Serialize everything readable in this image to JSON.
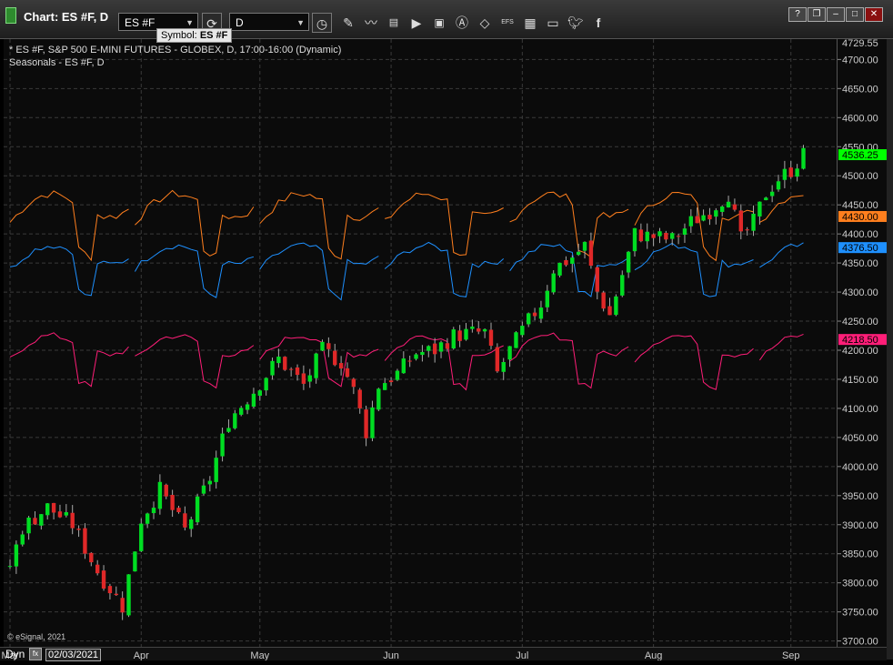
{
  "window": {
    "title": "Chart: ES #F, D",
    "symbol_value": "ES #F",
    "interval_value": "D",
    "tooltip_label": "Symbol:",
    "tooltip_value": "ES #F",
    "buttons": {
      "help": "?",
      "restore": "❐",
      "minimize": "–",
      "maximize": "□",
      "close": "✕"
    }
  },
  "toolbar_icons": [
    "clock-icon",
    "pencil-icon",
    "line-tool-icon",
    "quote-icon",
    "play-icon",
    "text-tool-icon",
    "alert-icon",
    "eraser-icon",
    "efs-icon",
    "layout-icon",
    "chat-icon",
    "twitter-icon",
    "facebook-icon"
  ],
  "toolbar_efs_label": "EFS",
  "chart_info": {
    "line1": "* ES #F, S&P 500 E-MINI FUTURES - GLOBEX, D, 17:00-16:00 (Dynamic)",
    "line2": "Seasonals - ES #F, D"
  },
  "copyright": "© eSignal, 2021",
  "bottom": {
    "mode": "Dyn",
    "fn_label": "fx",
    "date": "02/03/2021"
  },
  "colors": {
    "up": "#00dd22",
    "down": "#e02828",
    "orange": "#ff7f1e",
    "blue": "#1e90ff",
    "pink": "#ff1e78",
    "grid": "#3a3a3a"
  },
  "chart_data": {
    "type": "candlestick",
    "ylim": [
      3690,
      4735
    ],
    "y_ticks": [
      3700,
      3750,
      3800,
      3850,
      3900,
      3950,
      4000,
      4050,
      4100,
      4150,
      4200,
      4250,
      4300,
      4350,
      4400,
      4450,
      4500,
      4550,
      4600,
      4650,
      4700
    ],
    "x_labels": [
      "Mar",
      "Apr",
      "May",
      "Jun",
      "Jul",
      "Aug",
      "Sep"
    ],
    "x_label_index": [
      0,
      21,
      40,
      61,
      82,
      103,
      125
    ],
    "bars_total": 128,
    "price_anchors": [
      {
        "index": 0,
        "price": 3830
      },
      {
        "index": 2,
        "price": 3895
      },
      {
        "index": 6,
        "price": 3930
      },
      {
        "index": 10,
        "price": 3900
      },
      {
        "index": 14,
        "price": 3820
      },
      {
        "index": 18,
        "price": 3760
      },
      {
        "index": 21,
        "price": 3910
      },
      {
        "index": 24,
        "price": 3960
      },
      {
        "index": 28,
        "price": 3890
      },
      {
        "index": 32,
        "price": 3980
      },
      {
        "index": 35,
        "price": 4080
      },
      {
        "index": 39,
        "price": 4130
      },
      {
        "index": 43,
        "price": 4185
      },
      {
        "index": 47,
        "price": 4140
      },
      {
        "index": 50,
        "price": 4200
      },
      {
        "index": 53,
        "price": 4180
      },
      {
        "index": 55,
        "price": 4130
      },
      {
        "index": 57,
        "price": 4060
      },
      {
        "index": 59,
        "price": 4140
      },
      {
        "index": 62,
        "price": 4160
      },
      {
        "index": 65,
        "price": 4195
      },
      {
        "index": 68,
        "price": 4200
      },
      {
        "index": 71,
        "price": 4225
      },
      {
        "index": 74,
        "price": 4230
      },
      {
        "index": 76,
        "price": 4230
      },
      {
        "index": 78,
        "price": 4160
      },
      {
        "index": 80,
        "price": 4200
      },
      {
        "index": 83,
        "price": 4250
      },
      {
        "index": 85,
        "price": 4280
      },
      {
        "index": 87,
        "price": 4340
      },
      {
        "index": 90,
        "price": 4360
      },
      {
        "index": 92,
        "price": 4380
      },
      {
        "index": 94,
        "price": 4300
      },
      {
        "index": 96,
        "price": 4260
      },
      {
        "index": 98,
        "price": 4330
      },
      {
        "index": 100,
        "price": 4400
      },
      {
        "index": 103,
        "price": 4395
      },
      {
        "index": 106,
        "price": 4390
      },
      {
        "index": 109,
        "price": 4420
      },
      {
        "index": 112,
        "price": 4440
      },
      {
        "index": 115,
        "price": 4470
      },
      {
        "index": 117,
        "price": 4390
      },
      {
        "index": 119,
        "price": 4420
      },
      {
        "index": 121,
        "price": 4470
      },
      {
        "index": 123,
        "price": 4495
      },
      {
        "index": 125,
        "price": 4510
      },
      {
        "index": 127,
        "price": 4536
      }
    ],
    "series": [
      {
        "name": "ES #F",
        "last": "4536.25",
        "color": "#00ff00"
      },
      {
        "name": "Seasonals",
        "last": "4430.00",
        "color": "#ff7f1e"
      },
      {
        "name": "Seasonals",
        "last": "4376.50",
        "color": "#1e90ff"
      },
      {
        "name": "Seasonals",
        "last": "4218.50",
        "color": "#ff1e78"
      }
    ],
    "top_value": "4729.55"
  }
}
